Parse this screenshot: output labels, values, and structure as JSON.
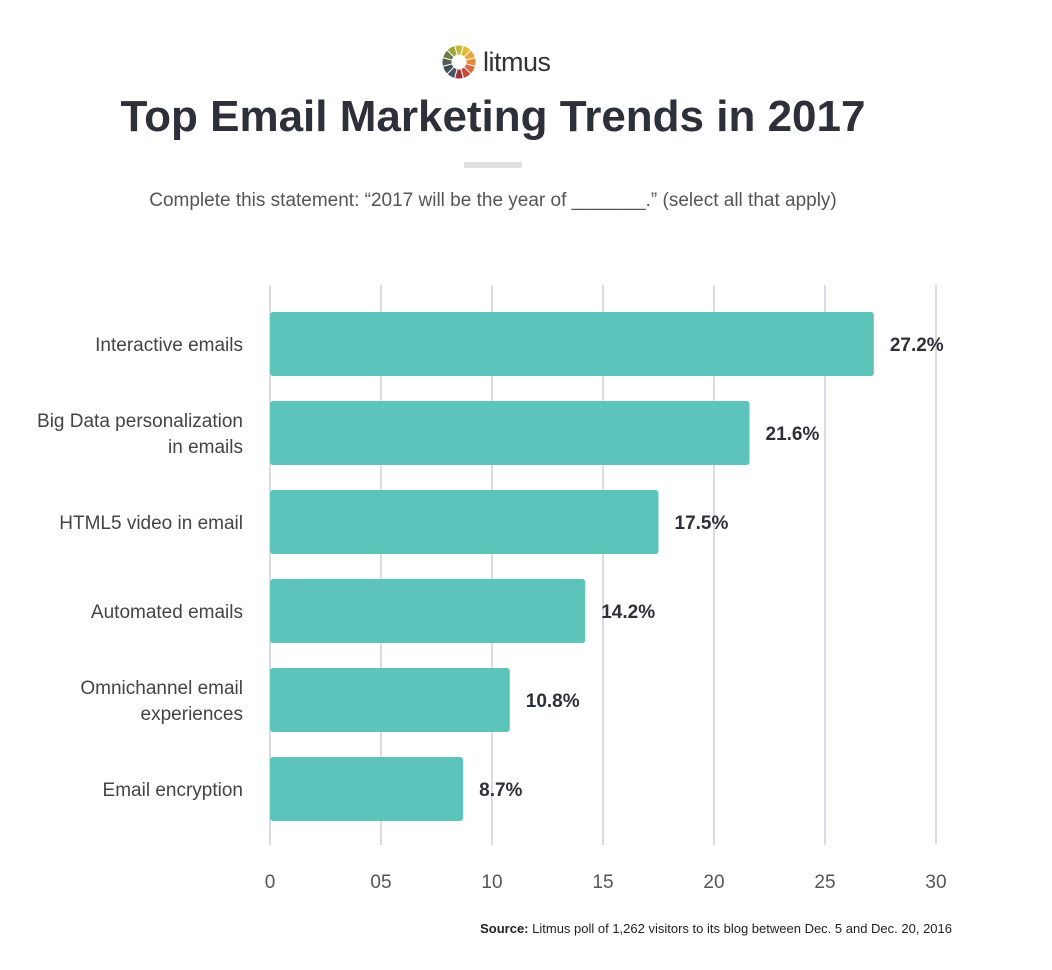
{
  "logo": {
    "text": "litmus"
  },
  "title": "Top Email Marketing Trends in 2017",
  "subtitle": "Complete this statement: “2017 will be the year of _______.” (select all that apply)",
  "source": {
    "label": "Source:",
    "text": "Litmus poll of 1,262 visitors to its blog between Dec. 5 and Dec. 20, 2016"
  },
  "colors": {
    "bar": "#5cc4bb",
    "grid": "#d9dde1",
    "text": "#2d3038"
  },
  "chart_data": {
    "type": "bar",
    "orientation": "horizontal",
    "categories": [
      [
        "Interactive emails"
      ],
      [
        "Big Data personalization",
        "in emails"
      ],
      [
        "HTML5 video in email"
      ],
      [
        "Automated emails"
      ],
      [
        "Omnichannel email",
        "experiences"
      ],
      [
        "Email encryption"
      ]
    ],
    "values": [
      27.2,
      21.6,
      17.5,
      14.2,
      10.8,
      8.7
    ],
    "data_labels": [
      "27.2%",
      "21.6%",
      "17.5%",
      "14.2%",
      "10.8%",
      "8.7%"
    ],
    "xlim": [
      0,
      30
    ],
    "xticks": [
      0,
      5,
      10,
      15,
      20,
      25,
      30
    ],
    "xtick_labels": [
      "0",
      "05",
      "10",
      "15",
      "20",
      "25",
      "30"
    ],
    "grid": true,
    "xlabel": "",
    "ylabel": ""
  }
}
